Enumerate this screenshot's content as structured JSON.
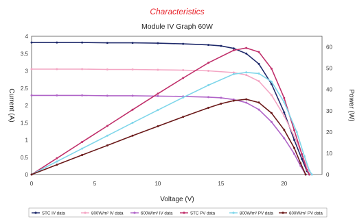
{
  "chart_data": {
    "type": "line",
    "suptitle": "Characteristics",
    "title": "Module IV Graph 60W",
    "xlabel": "Voltage (V)",
    "ylabel": "Current (A)",
    "y2label": "Power (W)",
    "xlim": [
      0,
      23
    ],
    "ylim": [
      0,
      4
    ],
    "y2lim": [
      0,
      65
    ],
    "xticks": [
      0,
      5,
      10,
      15,
      20
    ],
    "yticks": [
      0,
      0.5,
      1,
      1.5,
      2,
      2.5,
      3,
      3.5,
      4
    ],
    "y2ticks": [
      0,
      10,
      20,
      30,
      40,
      50,
      60
    ],
    "legend_position": "bottom",
    "grid": false,
    "series": [
      {
        "name": "STC IV data",
        "axis": "left",
        "color": "#1f2a6b",
        "points": [
          [
            0,
            3.82
          ],
          [
            2,
            3.82
          ],
          [
            4,
            3.82
          ],
          [
            6,
            3.81
          ],
          [
            8,
            3.81
          ],
          [
            10,
            3.8
          ],
          [
            12,
            3.78
          ],
          [
            14,
            3.75
          ],
          [
            15,
            3.72
          ],
          [
            16,
            3.65
          ],
          [
            17,
            3.5
          ],
          [
            18,
            3.2
          ],
          [
            19,
            2.62
          ],
          [
            20,
            1.8
          ],
          [
            20.8,
            1.0
          ],
          [
            21.4,
            0.45
          ],
          [
            21.8,
            0.1
          ],
          [
            22.0,
            0
          ]
        ]
      },
      {
        "name": "800W/m² IV data",
        "axis": "left",
        "color": "#f4a6c4",
        "points": [
          [
            0,
            3.05
          ],
          [
            2,
            3.05
          ],
          [
            4,
            3.05
          ],
          [
            6,
            3.04
          ],
          [
            8,
            3.04
          ],
          [
            10,
            3.03
          ],
          [
            12,
            3.02
          ],
          [
            14,
            3.0
          ],
          [
            16,
            2.95
          ],
          [
            17,
            2.88
          ],
          [
            18,
            2.7
          ],
          [
            19,
            2.3
          ],
          [
            20,
            1.7
          ],
          [
            21,
            0.95
          ],
          [
            21.6,
            0.4
          ],
          [
            22.0,
            0.08
          ],
          [
            22.2,
            0
          ]
        ]
      },
      {
        "name": "600W/m² IV data",
        "axis": "left",
        "color": "#b064c8",
        "points": [
          [
            0,
            2.29
          ],
          [
            2,
            2.29
          ],
          [
            4,
            2.29
          ],
          [
            6,
            2.28
          ],
          [
            8,
            2.28
          ],
          [
            10,
            2.27
          ],
          [
            12,
            2.26
          ],
          [
            14,
            2.24
          ],
          [
            15,
            2.22
          ],
          [
            16,
            2.17
          ],
          [
            17,
            2.08
          ],
          [
            18,
            1.88
          ],
          [
            19,
            1.52
          ],
          [
            20,
            1.05
          ],
          [
            20.8,
            0.6
          ],
          [
            21.3,
            0.25
          ],
          [
            21.7,
            0
          ]
        ]
      },
      {
        "name": "STC PV data",
        "axis": "right",
        "color": "#c0306b",
        "points": [
          [
            0,
            0
          ],
          [
            2,
            7.64
          ],
          [
            4,
            15.28
          ],
          [
            6,
            22.86
          ],
          [
            8,
            30.48
          ],
          [
            10,
            38.0
          ],
          [
            12,
            45.36
          ],
          [
            14,
            52.5
          ],
          [
            16,
            58.4
          ],
          [
            17,
            59.5
          ],
          [
            18,
            57.6
          ],
          [
            19,
            49.8
          ],
          [
            20,
            36.0
          ],
          [
            20.8,
            20.8
          ],
          [
            21.4,
            9.6
          ],
          [
            21.8,
            2.2
          ],
          [
            22.0,
            0
          ]
        ]
      },
      {
        "name": "800W/m² PV data",
        "axis": "right",
        "color": "#7fd6ea",
        "points": [
          [
            0,
            0
          ],
          [
            2,
            6.1
          ],
          [
            4,
            12.2
          ],
          [
            6,
            18.24
          ],
          [
            8,
            24.32
          ],
          [
            10,
            30.3
          ],
          [
            12,
            36.24
          ],
          [
            14,
            42.0
          ],
          [
            16,
            47.2
          ],
          [
            17,
            48.0
          ],
          [
            18,
            47.5
          ],
          [
            19,
            43.7
          ],
          [
            20,
            34.0
          ],
          [
            21,
            19.95
          ],
          [
            21.6,
            8.6
          ],
          [
            22.0,
            1.8
          ],
          [
            22.2,
            0
          ]
        ]
      },
      {
        "name": "600W/m² PV data",
        "axis": "right",
        "color": "#6b1a1a",
        "points": [
          [
            0,
            0
          ],
          [
            2,
            4.58
          ],
          [
            4,
            9.16
          ],
          [
            6,
            13.68
          ],
          [
            8,
            18.24
          ],
          [
            10,
            22.7
          ],
          [
            12,
            27.12
          ],
          [
            14,
            31.36
          ],
          [
            15,
            33.3
          ],
          [
            16,
            34.72
          ],
          [
            17,
            35.36
          ],
          [
            18,
            33.84
          ],
          [
            19,
            28.88
          ],
          [
            20,
            21.0
          ],
          [
            20.8,
            12.5
          ],
          [
            21.3,
            5.3
          ],
          [
            21.7,
            0
          ]
        ]
      }
    ]
  }
}
